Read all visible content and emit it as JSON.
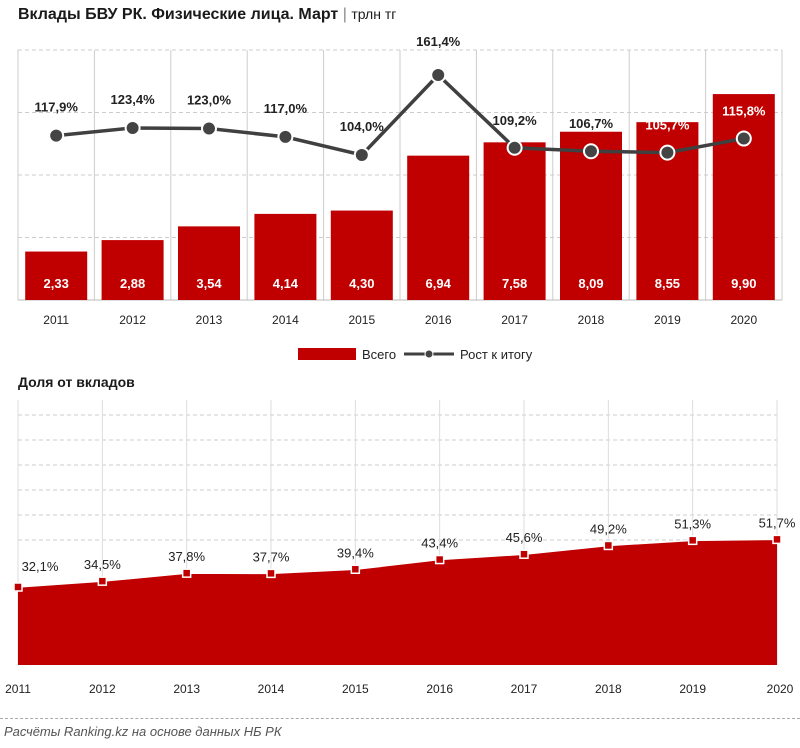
{
  "title": "Вклады БВУ РК. Физические лица. Март",
  "unit": "трлн тг",
  "footer": "Расчёты Ranking.kz на основе данных НБ РК",
  "colors": {
    "bar": "#C00000",
    "line": "#404040",
    "area": "#C00000"
  },
  "chart_data": [
    {
      "type": "bar+line",
      "categories": [
        "2011",
        "2012",
        "2013",
        "2014",
        "2015",
        "2016",
        "2017",
        "2018",
        "2019",
        "2020"
      ],
      "series": [
        {
          "name": "Всего",
          "type": "bar",
          "values": [
            2.33,
            2.88,
            3.54,
            4.14,
            4.3,
            6.94,
            7.58,
            8.09,
            8.55,
            9.9
          ],
          "labels": [
            "2,33",
            "2,88",
            "3,54",
            "4,14",
            "4,30",
            "6,94",
            "7,58",
            "8,09",
            "8,55",
            "9,90"
          ]
        },
        {
          "name": "Рост к итогу",
          "type": "line",
          "values": [
            117.9,
            123.4,
            123.0,
            117.0,
            104.0,
            161.4,
            109.2,
            106.7,
            105.7,
            115.8
          ],
          "labels": [
            "117,9%",
            "123,4%",
            "123,0%",
            "117,0%",
            "104,0%",
            "161,4%",
            "109,2%",
            "106,7%",
            "105,7%",
            "115,8%"
          ]
        }
      ],
      "legend": "bottom"
    },
    {
      "type": "area",
      "title": "Доля от вкладов",
      "categories": [
        "2011",
        "2012",
        "2013",
        "2014",
        "2015",
        "2016",
        "2017",
        "2018",
        "2019",
        "2020"
      ],
      "values": [
        32.1,
        34.5,
        37.8,
        37.7,
        39.4,
        43.4,
        45.6,
        49.2,
        51.3,
        51.7
      ],
      "labels": [
        "32,1%",
        "34,5%",
        "37,8%",
        "37,7%",
        "39,4%",
        "43,4%",
        "45,6%",
        "49,2%",
        "51,3%",
        "51,7%"
      ]
    }
  ]
}
